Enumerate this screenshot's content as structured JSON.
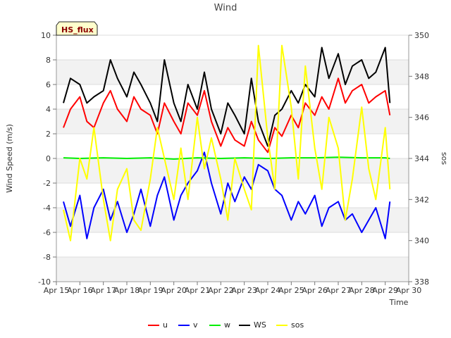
{
  "chart_data": {
    "type": "line",
    "title": "Wind",
    "xlabel": "Time",
    "ylabel": "Wind Speed (m/s)",
    "y2label": "sos",
    "badge": "HS_flux",
    "xlim": [
      15,
      30
    ],
    "ylim": [
      -10,
      10
    ],
    "y2lim": [
      338,
      350
    ],
    "x_ticks": [
      {
        "value": 15,
        "label": "Apr 15"
      },
      {
        "value": 16,
        "label": "Apr 16"
      },
      {
        "value": 17,
        "label": "Apr 17"
      },
      {
        "value": 18,
        "label": "Apr 18"
      },
      {
        "value": 19,
        "label": "Apr 19"
      },
      {
        "value": 20,
        "label": "Apr 20"
      },
      {
        "value": 21,
        "label": "Apr 21"
      },
      {
        "value": 22,
        "label": "Apr 22"
      },
      {
        "value": 23,
        "label": "Apr 23"
      },
      {
        "value": 24,
        "label": "Apr 24"
      },
      {
        "value": 25,
        "label": "Apr 25"
      },
      {
        "value": 26,
        "label": "Apr 26"
      },
      {
        "value": 27,
        "label": "Apr 27"
      },
      {
        "value": 28,
        "label": "Apr 28"
      },
      {
        "value": 29,
        "label": "Apr 29"
      },
      {
        "value": 30,
        "label": "Apr 30"
      }
    ],
    "y_ticks": [
      -10,
      -8,
      -6,
      -4,
      -2,
      0,
      2,
      4,
      6,
      8,
      10
    ],
    "y2_ticks": [
      338,
      340,
      342,
      344,
      346,
      348,
      350
    ],
    "grid": "horizontal bands",
    "legend_position": "bottom-center",
    "series": [
      {
        "name": "u",
        "axis": "left",
        "color": "#ff0000",
        "x": [
          15.3,
          15.6,
          16.0,
          16.3,
          16.6,
          17.0,
          17.3,
          17.6,
          18.0,
          18.3,
          18.6,
          19.0,
          19.3,
          19.6,
          20.0,
          20.3,
          20.6,
          21.0,
          21.3,
          21.6,
          22.0,
          22.3,
          22.6,
          23.0,
          23.3,
          23.6,
          24.0,
          24.3,
          24.6,
          25.0,
          25.3,
          25.6,
          26.0,
          26.3,
          26.6,
          27.0,
          27.3,
          27.6,
          28.0,
          28.3,
          28.6,
          29.0,
          29.2
        ],
        "y": [
          2.5,
          4.0,
          5.0,
          3.0,
          2.5,
          4.5,
          5.5,
          4.0,
          3.0,
          5.0,
          4.0,
          3.5,
          2.0,
          4.5,
          3.0,
          2.0,
          4.5,
          3.5,
          5.5,
          3.0,
          1.0,
          2.5,
          1.5,
          1.0,
          3.0,
          1.5,
          0.5,
          2.5,
          1.8,
          3.5,
          2.5,
          4.5,
          3.5,
          5.0,
          4.0,
          6.5,
          4.5,
          5.5,
          6.0,
          4.5,
          5.0,
          5.5,
          3.5
        ]
      },
      {
        "name": "v",
        "axis": "left",
        "color": "#0000ff",
        "x": [
          15.3,
          15.6,
          16.0,
          16.3,
          16.6,
          17.0,
          17.3,
          17.6,
          18.0,
          18.3,
          18.6,
          19.0,
          19.3,
          19.6,
          20.0,
          20.3,
          20.6,
          21.0,
          21.3,
          21.6,
          22.0,
          22.3,
          22.6,
          23.0,
          23.3,
          23.6,
          24.0,
          24.3,
          24.6,
          25.0,
          25.3,
          25.6,
          26.0,
          26.3,
          26.6,
          27.0,
          27.3,
          27.6,
          28.0,
          28.3,
          28.6,
          29.0,
          29.2
        ],
        "y": [
          -3.5,
          -5.5,
          -3.0,
          -6.5,
          -4.0,
          -2.5,
          -5.0,
          -3.5,
          -6.0,
          -4.5,
          -2.5,
          -5.5,
          -3.0,
          -1.5,
          -5.0,
          -3.0,
          -2.0,
          -1.0,
          0.5,
          -2.0,
          -4.5,
          -2.0,
          -3.5,
          -1.5,
          -2.5,
          -0.5,
          -1.0,
          -2.5,
          -3.0,
          -5.0,
          -3.5,
          -4.5,
          -3.0,
          -5.5,
          -4.0,
          -3.5,
          -5.0,
          -4.5,
          -6.0,
          -5.0,
          -4.0,
          -6.5,
          -3.5
        ]
      },
      {
        "name": "w",
        "axis": "left",
        "color": "#00ee00",
        "x": [
          15.3,
          16.0,
          17.0,
          18.0,
          19.0,
          20.0,
          21.0,
          22.0,
          23.0,
          24.0,
          25.0,
          26.0,
          27.0,
          28.0,
          29.0,
          29.2
        ],
        "y": [
          0.05,
          0.0,
          0.05,
          0.0,
          0.05,
          -0.05,
          0.05,
          0.0,
          0.05,
          0.0,
          0.05,
          0.05,
          0.1,
          0.05,
          0.05,
          0.0
        ]
      },
      {
        "name": "WS",
        "axis": "left",
        "color": "#000000",
        "x": [
          15.3,
          15.6,
          16.0,
          16.3,
          16.6,
          17.0,
          17.3,
          17.6,
          18.0,
          18.3,
          18.6,
          19.0,
          19.3,
          19.6,
          20.0,
          20.3,
          20.6,
          21.0,
          21.3,
          21.6,
          22.0,
          22.3,
          22.6,
          23.0,
          23.3,
          23.6,
          24.0,
          24.3,
          24.6,
          25.0,
          25.3,
          25.6,
          26.0,
          26.3,
          26.6,
          27.0,
          27.3,
          27.6,
          28.0,
          28.3,
          28.6,
          29.0,
          29.2
        ],
        "y": [
          4.5,
          6.5,
          6.0,
          4.5,
          5.0,
          5.5,
          8.0,
          6.5,
          5.0,
          7.0,
          6.0,
          4.5,
          3.0,
          8.0,
          4.5,
          3.0,
          6.0,
          4.0,
          7.0,
          4.0,
          2.0,
          4.5,
          3.5,
          2.0,
          6.5,
          3.0,
          1.0,
          3.5,
          4.0,
          5.5,
          4.5,
          6.0,
          5.0,
          9.0,
          6.5,
          8.5,
          6.0,
          7.5,
          8.0,
          6.5,
          7.0,
          9.0,
          4.5
        ]
      },
      {
        "name": "sos",
        "axis": "right",
        "color": "#ffff00",
        "x": [
          15.3,
          15.6,
          16.0,
          16.3,
          16.6,
          17.0,
          17.3,
          17.6,
          18.0,
          18.3,
          18.6,
          19.0,
          19.3,
          19.6,
          20.0,
          20.3,
          20.6,
          21.0,
          21.3,
          21.6,
          22.0,
          22.3,
          22.6,
          23.0,
          23.3,
          23.6,
          24.0,
          24.3,
          24.6,
          25.0,
          25.3,
          25.6,
          26.0,
          26.3,
          26.6,
          27.0,
          27.3,
          27.6,
          28.0,
          28.3,
          28.6,
          29.0,
          29.2
        ],
        "y": [
          341.5,
          340.0,
          344.0,
          343.0,
          345.5,
          342.0,
          340.0,
          342.5,
          343.5,
          341.0,
          340.5,
          343.0,
          345.5,
          344.0,
          342.0,
          344.5,
          342.0,
          346.0,
          343.5,
          345.0,
          343.0,
          341.0,
          344.0,
          342.5,
          341.5,
          349.5,
          345.0,
          342.5,
          349.5,
          346.5,
          343.0,
          348.5,
          344.5,
          342.5,
          346.0,
          344.5,
          341.0,
          343.0,
          346.5,
          343.5,
          342.0,
          345.5,
          342.5
        ]
      }
    ]
  }
}
